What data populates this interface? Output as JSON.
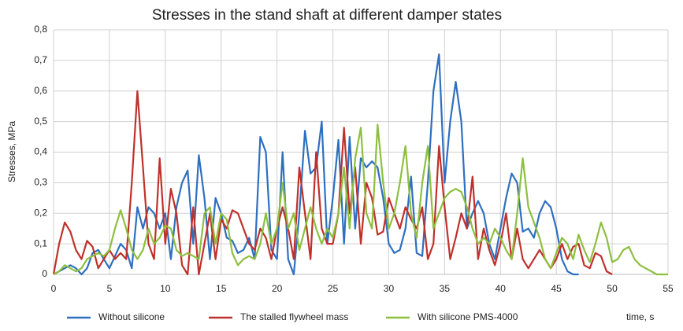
{
  "chart_data": {
    "type": "line",
    "title": "Stresses in the stand shaft at different damper states",
    "y_label": "Stresses, MPa",
    "x_label": "time, s",
    "x": [
      0,
      0.5,
      1,
      1.5,
      2,
      2.5,
      3,
      3.5,
      4,
      4.5,
      5,
      5.5,
      6,
      6.5,
      7,
      7.5,
      8,
      8.5,
      9,
      9.5,
      10,
      10.5,
      11,
      11.5,
      12,
      12.5,
      13,
      13.5,
      14,
      14.5,
      15,
      15.5,
      16,
      16.5,
      17,
      17.5,
      18,
      18.5,
      19,
      19.5,
      20,
      20.5,
      21,
      21.5,
      22,
      22.5,
      23,
      23.5,
      24,
      24.5,
      25,
      25.5,
      26,
      26.5,
      27,
      27.5,
      28,
      28.5,
      29,
      29.5,
      30,
      30.5,
      31,
      31.5,
      32,
      32.5,
      33,
      33.5,
      34,
      34.5,
      35,
      35.5,
      36,
      36.5,
      37,
      37.5,
      38,
      38.5,
      39,
      39.5,
      40,
      40.5,
      41,
      41.5,
      42,
      42.5,
      43,
      43.5,
      44,
      44.5,
      45,
      45.5,
      46,
      46.5,
      47,
      47.5,
      48,
      48.5,
      49,
      49.5,
      50,
      50.5,
      51,
      51.5,
      52,
      52.5,
      53,
      53.5,
      54,
      54.5,
      55
    ],
    "series": [
      {
        "name": "Without silicone",
        "color": "#2e6fc0",
        "values": [
          0,
          0.01,
          0.02,
          0.03,
          0.02,
          0,
          0.02,
          0.07,
          0.08,
          0.05,
          0.02,
          0.06,
          0.1,
          0.08,
          0.02,
          0.22,
          0.15,
          0.22,
          0.2,
          0.15,
          0.2,
          0.05,
          0.22,
          0.3,
          0.34,
          0.1,
          0.39,
          0.25,
          0.05,
          0.25,
          0.2,
          0.12,
          0.11,
          0.07,
          0.08,
          0.12,
          0.05,
          0.45,
          0.4,
          0.08,
          0.05,
          0.4,
          0.05,
          0,
          0.2,
          0.47,
          0.33,
          0.35,
          0.5,
          0.1,
          0.25,
          0.44,
          0.1,
          0.45,
          0.15,
          0.38,
          0.35,
          0.37,
          0.35,
          0.25,
          0.1,
          0.07,
          0.08,
          0.15,
          0.32,
          0.07,
          0.06,
          0.3,
          0.6,
          0.72,
          0.3,
          0.5,
          0.63,
          0.5,
          0.15,
          0.2,
          0.24,
          0.2,
          0.1,
          0.05,
          0.15,
          0.25,
          0.33,
          0.3,
          0.14,
          0.15,
          0.12,
          0.2,
          0.24,
          0.22,
          0.15,
          0.05,
          0.01,
          0,
          0,
          null,
          null,
          null,
          null,
          null,
          null,
          null,
          null,
          null,
          null,
          null,
          null,
          null,
          null,
          null,
          null
        ]
      },
      {
        "name": "The stalled flywheel mass",
        "color": "#c0302b",
        "values": [
          0,
          0.1,
          0.17,
          0.14,
          0.08,
          0.05,
          0.11,
          0.09,
          0.02,
          0.05,
          0.08,
          0.05,
          0.07,
          0.05,
          0.3,
          0.6,
          0.35,
          0.1,
          0.05,
          0.38,
          0.1,
          0.28,
          0.2,
          0.03,
          0,
          0.22,
          0,
          0.1,
          0.2,
          0.05,
          0.18,
          0.15,
          0.21,
          0.2,
          0.15,
          0.1,
          0.08,
          0.15,
          0.12,
          0.05,
          0.15,
          0.22,
          0.15,
          0.05,
          0.35,
          0.2,
          0.05,
          0.4,
          0.15,
          0.1,
          0.1,
          0.2,
          0.48,
          0.2,
          0.35,
          0.1,
          0.3,
          0.25,
          0.13,
          0.14,
          0.25,
          0.2,
          0.15,
          0.22,
          0.18,
          0.15,
          0.22,
          0.05,
          0.1,
          0.42,
          0.22,
          0.05,
          0.12,
          0.2,
          0.15,
          0.32,
          0.05,
          0.15,
          0.08,
          0.03,
          0.1,
          0.2,
          0.05,
          0.15,
          0.05,
          0.02,
          0.05,
          0.08,
          0.05,
          0.02,
          0.05,
          0.1,
          0.05,
          0.09,
          0.1,
          0.03,
          0.02,
          0.07,
          0.06,
          0.01,
          0,
          null,
          null,
          null,
          null,
          null,
          null,
          null,
          null,
          null,
          null
        ]
      },
      {
        "name": "With silicone PMS-4000",
        "color": "#8dbf3f",
        "values": [
          0,
          0.01,
          0.03,
          0.02,
          0.01,
          0.02,
          0.05,
          0.06,
          0.07,
          0.06,
          0.08,
          0.15,
          0.21,
          0.15,
          0.08,
          0.05,
          0.08,
          0.15,
          0.1,
          0.12,
          0.16,
          0.15,
          0.08,
          0.06,
          0.07,
          0.06,
          0.05,
          0.2,
          0.22,
          0.1,
          0.2,
          0.18,
          0.07,
          0.03,
          0.05,
          0.06,
          0.05,
          0.1,
          0.2,
          0.1,
          0.15,
          0.3,
          0.15,
          0.2,
          0.08,
          0.15,
          0.22,
          0.15,
          0.1,
          0.15,
          0.12,
          0.2,
          0.35,
          0.15,
          0.38,
          0.48,
          0.2,
          0.15,
          0.49,
          0.3,
          0.15,
          0.2,
          0.3,
          0.42,
          0.2,
          0.12,
          0.3,
          0.42,
          0.15,
          0.2,
          0.25,
          0.27,
          0.28,
          0.27,
          0.22,
          0.15,
          0.1,
          0.12,
          0.1,
          0.15,
          0.12,
          0.08,
          0.05,
          0.2,
          0.38,
          0.22,
          0.17,
          0.12,
          0.05,
          0.02,
          0.07,
          0.12,
          0.1,
          0.05,
          0.13,
          0.08,
          0.04,
          0.1,
          0.17,
          0.12,
          0.04,
          0.05,
          0.08,
          0.09,
          0.05,
          0.03,
          0.02,
          0.01,
          0,
          0,
          0
        ]
      }
    ],
    "xlim": [
      0,
      55
    ],
    "xticks": [
      0,
      5,
      10,
      15,
      20,
      25,
      30,
      35,
      40,
      45,
      50,
      55
    ],
    "ylim": [
      0,
      0.8
    ],
    "yticks": [
      0,
      {
        "value": 0.1,
        "label": "0,1"
      },
      {
        "value": 0.2,
        "label": "0,2"
      },
      {
        "value": 0.3,
        "label": "0,3"
      },
      {
        "value": 0.4,
        "label": "0,4"
      },
      {
        "value": 0.5,
        "label": "0,5"
      },
      {
        "value": 0.6,
        "label": "0,6"
      },
      {
        "value": 0.7,
        "label": "0,7"
      },
      {
        "value": 0.8,
        "label": "0,8"
      }
    ],
    "grid": true
  }
}
